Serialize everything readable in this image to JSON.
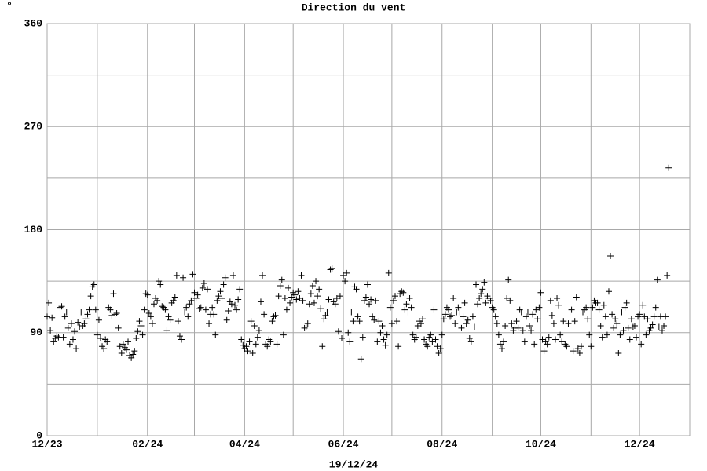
{
  "chart_data": {
    "type": "scatter",
    "title": "Direction du vent",
    "unit": "°",
    "date_label": "19/12/24",
    "color": "#000000",
    "grid": true,
    "xlim": [
      0,
      397
    ],
    "xticks": [
      {
        "value": 0,
        "label": "12/23"
      },
      {
        "value": 62,
        "label": "02/24"
      },
      {
        "value": 122,
        "label": "04/24"
      },
      {
        "value": 183,
        "label": "06/24"
      },
      {
        "value": 244,
        "label": "08/24"
      },
      {
        "value": 305,
        "label": "10/24"
      },
      {
        "value": 366,
        "label": "12/24"
      }
    ],
    "xminorticks": [
      31,
      91,
      152,
      213,
      275,
      336
    ],
    "ylim": [
      0,
      360
    ],
    "yticks": [
      0,
      90,
      180,
      270,
      360
    ],
    "yminorticks": [
      45,
      135,
      225,
      315
    ],
    "x": [
      0,
      1,
      2,
      3,
      4,
      5,
      6,
      7,
      8,
      9,
      10,
      11,
      12,
      13,
      14,
      15,
      16,
      17,
      18,
      19,
      20,
      21,
      22,
      23,
      24,
      25,
      26,
      27,
      28,
      29,
      30,
      31,
      32,
      33,
      34,
      35,
      36,
      37,
      38,
      39,
      40,
      41,
      42,
      43,
      44,
      45,
      46,
      47,
      48,
      49,
      50,
      51,
      52,
      53,
      54,
      55,
      56,
      57,
      58,
      59,
      60,
      61,
      62,
      63,
      64,
      65,
      66,
      67,
      68,
      69,
      70,
      71,
      72,
      73,
      74,
      75,
      76,
      77,
      78,
      79,
      80,
      81,
      82,
      83,
      84,
      85,
      86,
      87,
      88,
      89,
      90,
      91,
      92,
      93,
      94,
      95,
      96,
      97,
      98,
      99,
      100,
      101,
      102,
      103,
      104,
      105,
      106,
      107,
      108,
      109,
      110,
      111,
      112,
      113,
      114,
      115,
      116,
      117,
      118,
      119,
      120,
      121,
      122,
      123,
      124,
      125,
      126,
      127,
      128,
      129,
      130,
      131,
      132,
      133,
      134,
      135,
      136,
      137,
      138,
      139,
      140,
      141,
      142,
      143,
      144,
      145,
      146,
      147,
      148,
      149,
      150,
      151,
      152,
      153,
      154,
      155,
      156,
      157,
      158,
      159,
      160,
      161,
      162,
      163,
      164,
      165,
      166,
      167,
      168,
      169,
      170,
      171,
      172,
      173,
      174,
      175,
      176,
      177,
      178,
      179,
      180,
      181,
      182,
      183,
      184,
      185,
      186,
      187,
      188,
      189,
      190,
      191,
      192,
      193,
      194,
      195,
      196,
      197,
      198,
      199,
      200,
      201,
      202,
      203,
      204,
      205,
      206,
      207,
      208,
      209,
      210,
      211,
      212,
      213,
      214,
      215,
      216,
      217,
      218,
      219,
      220,
      221,
      222,
      223,
      224,
      225,
      226,
      227,
      228,
      229,
      230,
      231,
      232,
      233,
      234,
      235,
      236,
      237,
      238,
      239,
      240,
      241,
      242,
      243,
      244,
      245,
      246,
      247,
      248,
      249,
      250,
      251,
      252,
      253,
      254,
      255,
      256,
      257,
      258,
      259,
      260,
      261,
      262,
      263,
      264,
      265,
      266,
      267,
      268,
      269,
      270,
      271,
      272,
      273,
      274,
      275,
      276,
      277,
      278,
      279,
      280,
      281,
      282,
      283,
      284,
      285,
      286,
      287,
      288,
      289,
      290,
      291,
      292,
      293,
      294,
      295,
      296,
      297,
      298,
      299,
      300,
      301,
      302,
      303,
      304,
      305,
      306,
      307,
      308,
      309,
      310,
      311,
      312,
      313,
      314,
      315,
      316,
      317,
      318,
      319,
      320,
      321,
      322,
      323,
      324,
      325,
      326,
      327,
      328,
      329,
      330,
      331,
      332,
      333,
      334,
      335,
      336,
      337,
      338,
      339,
      340,
      341,
      342,
      343,
      344,
      345,
      346,
      347,
      348,
      349,
      350,
      351,
      352,
      353,
      354,
      355,
      356,
      357,
      358,
      359,
      360,
      361,
      362,
      363,
      364,
      365,
      366,
      367,
      368,
      369,
      370,
      371,
      372,
      373,
      374,
      375,
      376,
      377,
      378,
      379,
      380,
      381,
      382,
      383,
      384
    ],
    "values": [
      104,
      116,
      92,
      103,
      82,
      85,
      87,
      86,
      112,
      113,
      86,
      104,
      108,
      94,
      80,
      98,
      84,
      91,
      76,
      99,
      95,
      108,
      96,
      98,
      102,
      106,
      110,
      122,
      130,
      132,
      110,
      88,
      101,
      85,
      78,
      76,
      84,
      82,
      112,
      110,
      105,
      124,
      106,
      107,
      94,
      78,
      72,
      80,
      77,
      75,
      82,
      70,
      68,
      71,
      74,
      85,
      91,
      100,
      96,
      88,
      110,
      124,
      123,
      107,
      104,
      98,
      115,
      120,
      118,
      135,
      132,
      113,
      112,
      110,
      92,
      104,
      101,
      116,
      118,
      121,
      140,
      100,
      87,
      84,
      138,
      108,
      112,
      104,
      115,
      118,
      141,
      125,
      120,
      123,
      111,
      112,
      129,
      133,
      110,
      128,
      98,
      106,
      112,
      106,
      88,
      118,
      122,
      126,
      120,
      132,
      138,
      101,
      109,
      117,
      115,
      140,
      114,
      110,
      119,
      128,
      84,
      79,
      76,
      78,
      74,
      82,
      100,
      72,
      96,
      80,
      86,
      92,
      117,
      140,
      106,
      80,
      78,
      84,
      82,
      100,
      104,
      105,
      80,
      122,
      131,
      136,
      88,
      120,
      110,
      129,
      116,
      121,
      125,
      123,
      119,
      126,
      120,
      140,
      118,
      94,
      95,
      98,
      115,
      124,
      131,
      116,
      135,
      122,
      128,
      111,
      78,
      102,
      105,
      108,
      119,
      145,
      146,
      117,
      115,
      120,
      91,
      122,
      85,
      140,
      135,
      142,
      90,
      82,
      108,
      100,
      130,
      128,
      104,
      100,
      67,
      86,
      118,
      121,
      132,
      115,
      119,
      104,
      101,
      118,
      82,
      100,
      90,
      96,
      84,
      79,
      88,
      142,
      112,
      98,
      118,
      122,
      100,
      78,
      124,
      126,
      125,
      110,
      115,
      108,
      120,
      112,
      88,
      84,
      86,
      96,
      100,
      98,
      102,
      84,
      80,
      78,
      86,
      88,
      82,
      110,
      84,
      78,
      72,
      76,
      88,
      102,
      106,
      112,
      110,
      104,
      105,
      120,
      98,
      108,
      112,
      108,
      94,
      104,
      116,
      98,
      101,
      85,
      82,
      104,
      95,
      132,
      115,
      120,
      124,
      128,
      134,
      116,
      122,
      120,
      118,
      112,
      110,
      104,
      98,
      88,
      80,
      76,
      82,
      96,
      120,
      136,
      118,
      98,
      92,
      94,
      100,
      94,
      110,
      108,
      92,
      82,
      104,
      108,
      96,
      92,
      106,
      80,
      110,
      102,
      112,
      125,
      84,
      74,
      82,
      80,
      86,
      118,
      105,
      98,
      84,
      120,
      114,
      88,
      82,
      100,
      80,
      78,
      98,
      108,
      110,
      74,
      100,
      121,
      76,
      72,
      78,
      108,
      110,
      112,
      102,
      88,
      78,
      112,
      118,
      116,
      116,
      110,
      96,
      86,
      114,
      104,
      88,
      126,
      157,
      106,
      94,
      102,
      98,
      72,
      88,
      108,
      92,
      112,
      116,
      94,
      84,
      102,
      95,
      96,
      86,
      104,
      106,
      80,
      114,
      104,
      88,
      102,
      92,
      94,
      97,
      104,
      112,
      136,
      95,
      104,
      92,
      96,
      104,
      140,
      234
    ]
  }
}
